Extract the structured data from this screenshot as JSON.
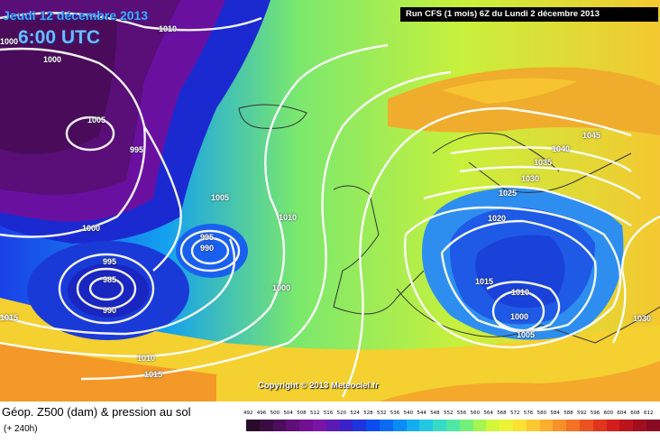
{
  "header": {
    "date": "Jeudi 12 décembre 2013",
    "time": "6:00 UTC",
    "run": "Run CFS (1 mois) 6Z du Lundi 2 décembre 2013"
  },
  "map": {
    "copyright": "Copyright © 2013 Meteociel.fr",
    "isobars": [
      "1000",
      "1010",
      "1000",
      "1005",
      "995",
      "1005",
      "1000",
      "1010",
      "995",
      "990",
      "995",
      "985",
      "990",
      "1000",
      "1015",
      "1010",
      "1015",
      "1040",
      "1045",
      "1035",
      "1030",
      "1025",
      "1020",
      "1015",
      "1010",
      "1000",
      "1005",
      "1030"
    ]
  },
  "legend": {
    "field": "Géop. Z500 (dam) & pression au sol",
    "lead": "(+ 240h)",
    "ticks": [
      "492",
      "496",
      "500",
      "504",
      "508",
      "512",
      "516",
      "520",
      "524",
      "528",
      "532",
      "536",
      "540",
      "544",
      "548",
      "552",
      "556",
      "560",
      "564",
      "568",
      "572",
      "576",
      "580",
      "584",
      "588",
      "592",
      "596",
      "600",
      "604",
      "608",
      "612"
    ],
    "colors": [
      "#2a0a2a",
      "#3a0c42",
      "#4c0e5c",
      "#600f78",
      "#701090",
      "#7a14a6",
      "#5a1ab4",
      "#3a22c8",
      "#1e34dc",
      "#0a4cf0",
      "#0a6af4",
      "#0a8cf6",
      "#14aef0",
      "#22c8e2",
      "#34dcc8",
      "#4ee8a4",
      "#74f07a",
      "#a6f452",
      "#d2f63a",
      "#eef236",
      "#fce032",
      "#fcc830",
      "#fcae2c",
      "#f89028",
      "#f47224",
      "#ec5220",
      "#e2361c",
      "#d21e1c",
      "#bc141c",
      "#a20e1e",
      "#880a22"
    ]
  }
}
